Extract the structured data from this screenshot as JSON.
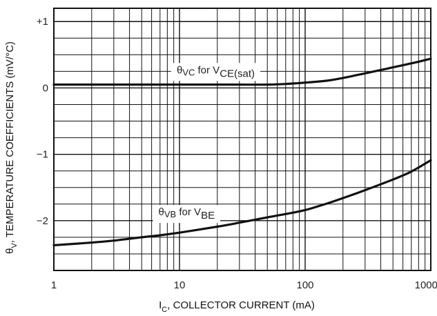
{
  "chart_data": {
    "type": "line",
    "xscale": "log",
    "xlim": [
      1,
      1000
    ],
    "ylim": [
      -2.75,
      1.2
    ],
    "grid": true,
    "xlabel": {
      "main": "I",
      "sub": "C",
      "rest": ", COLLECTOR CURRENT (mA)"
    },
    "ylabel": {
      "main": "θ",
      "sub": "V",
      "rest": ", TEMPERATURE COEFFICIENTS (mV/°C)"
    },
    "x_ticks": [
      {
        "value": 1,
        "label": "1"
      },
      {
        "value": 10,
        "label": "10"
      },
      {
        "value": 100,
        "label": "100"
      },
      {
        "value": 1000,
        "label": "1000"
      }
    ],
    "y_ticks": [
      {
        "value": 1,
        "label": "+1"
      },
      {
        "value": 0,
        "label": "0"
      },
      {
        "value": -1,
        "label": "−1"
      },
      {
        "value": -2,
        "label": "−2"
      }
    ],
    "series": [
      {
        "name": "θVC for VCE(sat)",
        "label_parts": [
          "θ",
          "VC",
          " for V",
          "CE(sat)"
        ],
        "label_at": {
          "x": 9.5,
          "y": 0.22
        },
        "color": "#111111",
        "x": [
          1,
          2,
          5,
          10,
          20,
          30,
          50,
          70,
          100,
          150,
          200,
          300,
          400,
          500,
          700,
          1000
        ],
        "y": [
          0.05,
          0.05,
          0.05,
          0.05,
          0.05,
          0.05,
          0.05,
          0.06,
          0.08,
          0.11,
          0.15,
          0.22,
          0.27,
          0.31,
          0.37,
          0.44
        ]
      },
      {
        "name": "θVB for VBE",
        "label_parts": [
          "θ",
          "VB",
          " for V",
          "BE"
        ],
        "label_at": {
          "x": 6.8,
          "y": -1.92
        },
        "color": "#111111",
        "x": [
          1,
          2,
          3,
          5,
          7,
          10,
          20,
          30,
          50,
          70,
          100,
          150,
          200,
          300,
          500,
          700,
          1000
        ],
        "y": [
          -2.37,
          -2.33,
          -2.3,
          -2.25,
          -2.22,
          -2.18,
          -2.09,
          -2.03,
          -1.95,
          -1.9,
          -1.84,
          -1.74,
          -1.66,
          -1.54,
          -1.38,
          -1.26,
          -1.09
        ]
      }
    ]
  }
}
